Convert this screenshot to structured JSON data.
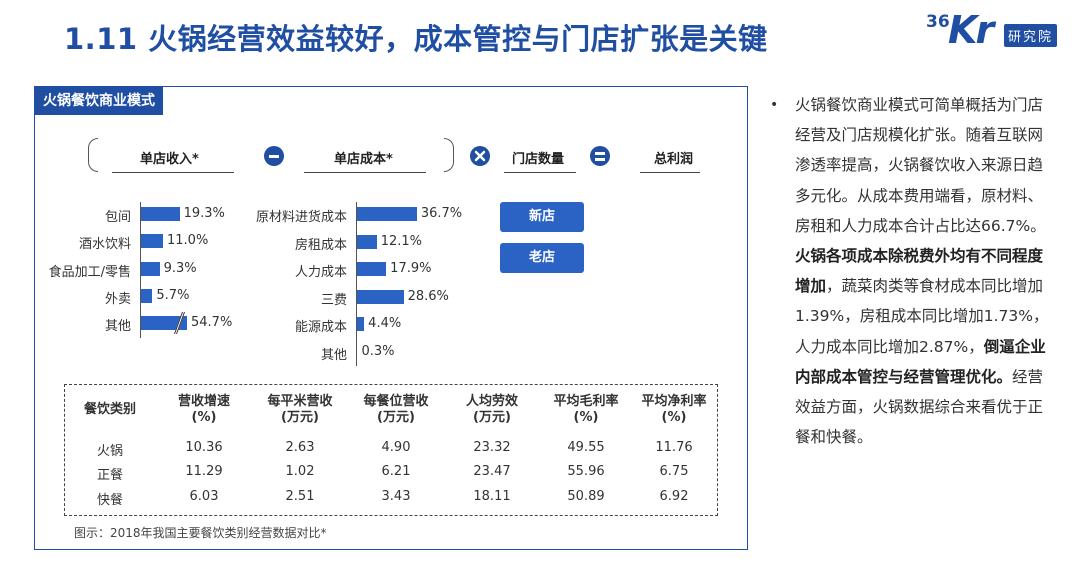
{
  "title": "1.11 火锅经营效益较好，成本管控与门店扩张是关键",
  "logo": {
    "number": "36",
    "brand": "Kr",
    "sub": "研究院"
  },
  "panel": {
    "tag": "火锅餐饮商业模式",
    "formula": {
      "revenue": "单店收入*",
      "cost": "单店成本*",
      "stores": "门店数量",
      "profit": "总利润"
    },
    "revenue_items": [
      {
        "label": "包间",
        "value": "19.3%",
        "pct": 19.3
      },
      {
        "label": "酒水饮料",
        "value": "11.0%",
        "pct": 11.0
      },
      {
        "label": "食品加工/零售",
        "value": "9.3%",
        "pct": 9.3
      },
      {
        "label": "外卖",
        "value": "5.7%",
        "pct": 5.7
      },
      {
        "label": "其他",
        "value": "54.7%",
        "pct": 54.7
      }
    ],
    "cost_items": [
      {
        "label": "原材料进货成本",
        "value": "36.7%",
        "pct": 36.7
      },
      {
        "label": "房租成本",
        "value": "12.1%",
        "pct": 12.1
      },
      {
        "label": "人力成本",
        "value": "17.9%",
        "pct": 17.9
      },
      {
        "label": "三费",
        "value": "28.6%",
        "pct": 28.6
      },
      {
        "label": "能源成本",
        "value": "4.4%",
        "pct": 4.4
      },
      {
        "label": "其他",
        "value": "0.3%",
        "pct": 0.3
      }
    ],
    "store_buttons": {
      "new": "新店",
      "old": "老店"
    },
    "table": {
      "headers": [
        [
          "餐饮类别",
          ""
        ],
        [
          "营收增速",
          "(%)"
        ],
        [
          "每平米营收",
          "(万元)"
        ],
        [
          "每餐位营收",
          "(万元)"
        ],
        [
          "人均劳效",
          "(万元)"
        ],
        [
          "平均毛利率",
          "(%)"
        ],
        [
          "平均净利率",
          "(%)"
        ]
      ],
      "rows": [
        [
          "火锅",
          "10.36",
          "2.63",
          "4.90",
          "23.32",
          "49.55",
          "11.76"
        ],
        [
          "正餐",
          "11.29",
          "1.02",
          "6.21",
          "23.47",
          "55.96",
          "6.75"
        ],
        [
          "快餐",
          "6.03",
          "2.51",
          "3.43",
          "18.11",
          "50.89",
          "6.92"
        ]
      ]
    },
    "caption": "图示：2018年我国主要餐饮类别经营数据对比*"
  },
  "side": {
    "bullet": "•",
    "p1": "火锅餐饮商业模式可简单概括为门店经营及门店规模化扩张。随着互联网渗透率提高，火锅餐饮收入来源日趋多元化。从成本费用端看，原材料、房租和人力成本合计占比达66.7%。",
    "p2_bold": "火锅各项成本除税费外均有不同程度增加",
    "p3": "，蔬菜肉类等食材成本同比增加1.39%，房租成本同比增加1.73%，人力成本同比增加2.87%，",
    "p4_bold": "倒逼企业内部成本管控与经营管理优化。",
    "p5": "经营效益方面，火锅数据综合来看优于正餐和快餐。"
  },
  "colors": {
    "brand": "#1f4ea3",
    "bar": "#2b63c4"
  }
}
